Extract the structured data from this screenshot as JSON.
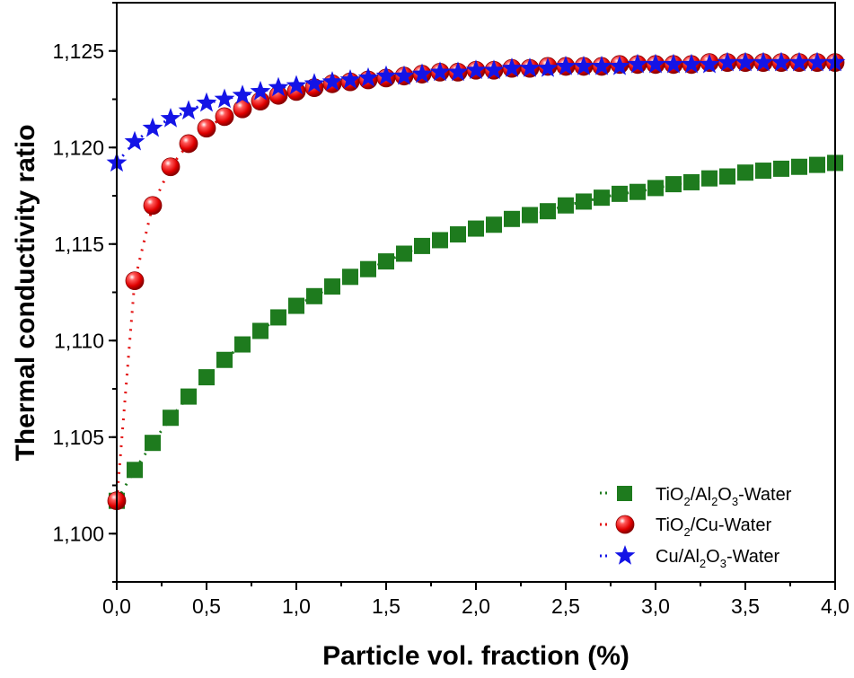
{
  "chart_data": {
    "type": "scatter",
    "xlabel": "Particle vol. fraction (%)",
    "ylabel": "Thermal conductivity ratio",
    "xlim": [
      0,
      4.0
    ],
    "ylim": [
      1.0975,
      1.1275
    ],
    "x_ticks": [
      0,
      0.5,
      1.0,
      1.5,
      2.0,
      2.5,
      3.0,
      3.5,
      4.0
    ],
    "x_tick_labels": [
      "0,0",
      "0,5",
      "1,0",
      "1,5",
      "2,0",
      "2,5",
      "3,0",
      "3,5",
      "4,0"
    ],
    "y_ticks": [
      1.1,
      1.105,
      1.11,
      1.115,
      1.12,
      1.125
    ],
    "y_tick_labels": [
      "1,100",
      "1,105",
      "1,110",
      "1,115",
      "1,120",
      "1,125"
    ],
    "legend_position": "bottom-right",
    "x": [
      0.0,
      0.1,
      0.2,
      0.3,
      0.4,
      0.5,
      0.6,
      0.7,
      0.8,
      0.9,
      1.0,
      1.1,
      1.2,
      1.3,
      1.4,
      1.5,
      1.6,
      1.7,
      1.8,
      1.9,
      2.0,
      2.1,
      2.2,
      2.3,
      2.4,
      2.5,
      2.6,
      2.7,
      2.8,
      2.9,
      3.0,
      3.1,
      3.2,
      3.3,
      3.4,
      3.5,
      3.6,
      3.7,
      3.8,
      3.9,
      4.0
    ],
    "series": [
      {
        "name": "TiO2/Al2O3-Water",
        "color": "#1e7b1e",
        "marker": "square",
        "values": [
          1.1017,
          1.1033,
          1.1047,
          1.106,
          1.1071,
          1.1081,
          1.109,
          1.1098,
          1.1105,
          1.1112,
          1.1118,
          1.1123,
          1.1128,
          1.1133,
          1.1137,
          1.1141,
          1.1145,
          1.1149,
          1.1152,
          1.1155,
          1.1158,
          1.116,
          1.1163,
          1.1165,
          1.1167,
          1.117,
          1.1172,
          1.1174,
          1.1176,
          1.1177,
          1.1179,
          1.1181,
          1.1182,
          1.1184,
          1.1185,
          1.1187,
          1.1188,
          1.1189,
          1.119,
          1.1191,
          1.1192
        ]
      },
      {
        "name": "TiO2/Cu-Water",
        "color": "#e30d0d",
        "marker": "sphere",
        "values": [
          1.1017,
          1.1131,
          1.117,
          1.119,
          1.1202,
          1.121,
          1.1216,
          1.122,
          1.1224,
          1.1227,
          1.1229,
          1.1231,
          1.1233,
          1.1234,
          1.1235,
          1.1236,
          1.1237,
          1.1238,
          1.1239,
          1.1239,
          1.124,
          1.124,
          1.1241,
          1.1241,
          1.1242,
          1.1242,
          1.1242,
          1.1242,
          1.1243,
          1.1243,
          1.1243,
          1.1243,
          1.1243,
          1.1244,
          1.1244,
          1.1244,
          1.1244,
          1.1244,
          1.1244,
          1.1244,
          1.1244
        ]
      },
      {
        "name": "Cu/Al2O3-Water",
        "color": "#1414e6",
        "marker": "star",
        "values": [
          1.1192,
          1.1203,
          1.121,
          1.1215,
          1.1219,
          1.1223,
          1.1225,
          1.1227,
          1.1229,
          1.1231,
          1.1232,
          1.1233,
          1.1234,
          1.1235,
          1.1236,
          1.1237,
          1.1237,
          1.1238,
          1.1239,
          1.1239,
          1.124,
          1.124,
          1.1241,
          1.1241,
          1.1241,
          1.1242,
          1.1242,
          1.1242,
          1.1242,
          1.1243,
          1.1243,
          1.1243,
          1.1243,
          1.1243,
          1.1244,
          1.1244,
          1.1244,
          1.1244,
          1.1244,
          1.1244,
          1.1244
        ]
      }
    ],
    "legend": [
      {
        "base": "TiO",
        "sub1": "2",
        "mid": "/Al",
        "sub2": "2",
        "mid2": "O",
        "sub3": "3",
        "tail": "-Water"
      },
      {
        "base": "TiO",
        "sub1": "2",
        "mid": "/Cu-Water"
      },
      {
        "base": "Cu/Al",
        "sub1": "2",
        "mid": "O",
        "sub2": "3",
        "tail": "-Water"
      }
    ]
  }
}
